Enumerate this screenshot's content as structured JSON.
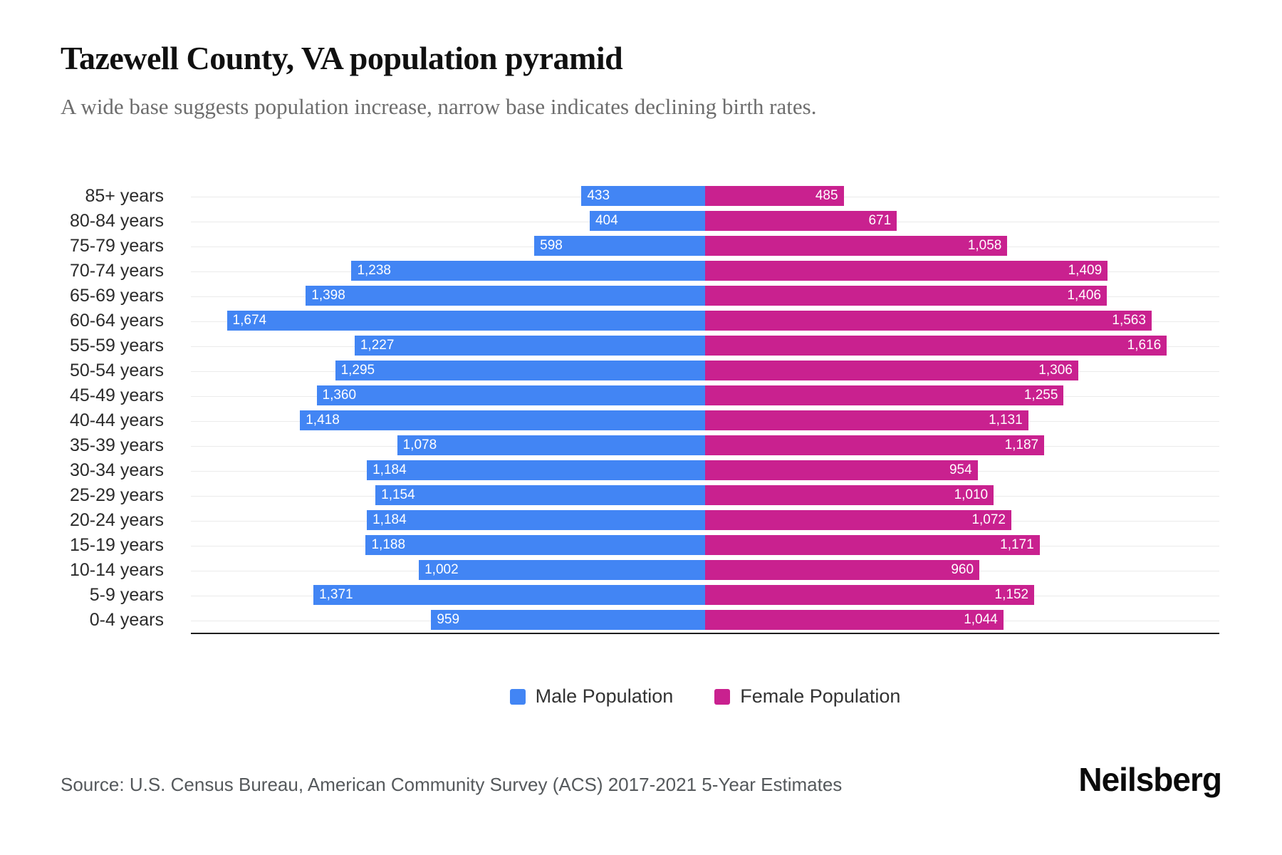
{
  "header": {
    "title": "Tazewell County, VA population pyramid",
    "subtitle": "A wide base suggests population increase, narrow base indicates declining birth rates."
  },
  "chart_data": {
    "type": "bar",
    "subtype": "population_pyramid",
    "orientation": "horizontal",
    "grid": "on",
    "legend_position": "bottom",
    "axis_max_per_side": 1800,
    "categories": [
      "85+ years",
      "80-84 years",
      "75-79 years",
      "70-74 years",
      "65-69 years",
      "60-64 years",
      "55-59 years",
      "50-54 years",
      "45-49 years",
      "40-44 years",
      "35-39 years",
      "30-34 years",
      "25-29 years",
      "20-24 years",
      "15-19 years",
      "10-14 years",
      "5-9 years",
      "0-4 years"
    ],
    "series": [
      {
        "name": "Male Population",
        "side": "left",
        "color": "#4285F4",
        "values": [
          433,
          404,
          598,
          1238,
          1398,
          1674,
          1227,
          1295,
          1360,
          1418,
          1078,
          1184,
          1154,
          1184,
          1188,
          1002,
          1371,
          959
        ],
        "labels": [
          "433",
          "404",
          "598",
          "1,238",
          "1,398",
          "1,674",
          "1,227",
          "1,295",
          "1,360",
          "1,418",
          "1,078",
          "1,184",
          "1,154",
          "1,184",
          "1,188",
          "1,002",
          "1,371",
          "959"
        ]
      },
      {
        "name": "Female Population",
        "side": "right",
        "color": "#C9218F",
        "values": [
          485,
          671,
          1058,
          1409,
          1406,
          1563,
          1616,
          1306,
          1255,
          1131,
          1187,
          954,
          1010,
          1072,
          1171,
          960,
          1152,
          1044
        ],
        "labels": [
          "485",
          "671",
          "1,058",
          "1,409",
          "1,406",
          "1,563",
          "1,616",
          "1,306",
          "1,255",
          "1,131",
          "1,187",
          "954",
          "1,010",
          "1,072",
          "1,171",
          "960",
          "1,152",
          "1,044"
        ]
      }
    ]
  },
  "legend": {
    "male_label": "Male Population",
    "female_label": "Female Population"
  },
  "footer": {
    "source": "Source: U.S. Census Bureau, American Community Survey (ACS) 2017-2021 5-Year Estimates",
    "brand": "Neilsberg"
  },
  "colors": {
    "male": "#4285F4",
    "female": "#C9218F",
    "gridline": "#EBEBEB",
    "axis_line": "#1F1F1F",
    "title": "#101010",
    "subtitle": "#6D6D6D",
    "axis_label": "#2B2B2B",
    "value_label": "#FFFFFF",
    "source": "#55595C"
  }
}
